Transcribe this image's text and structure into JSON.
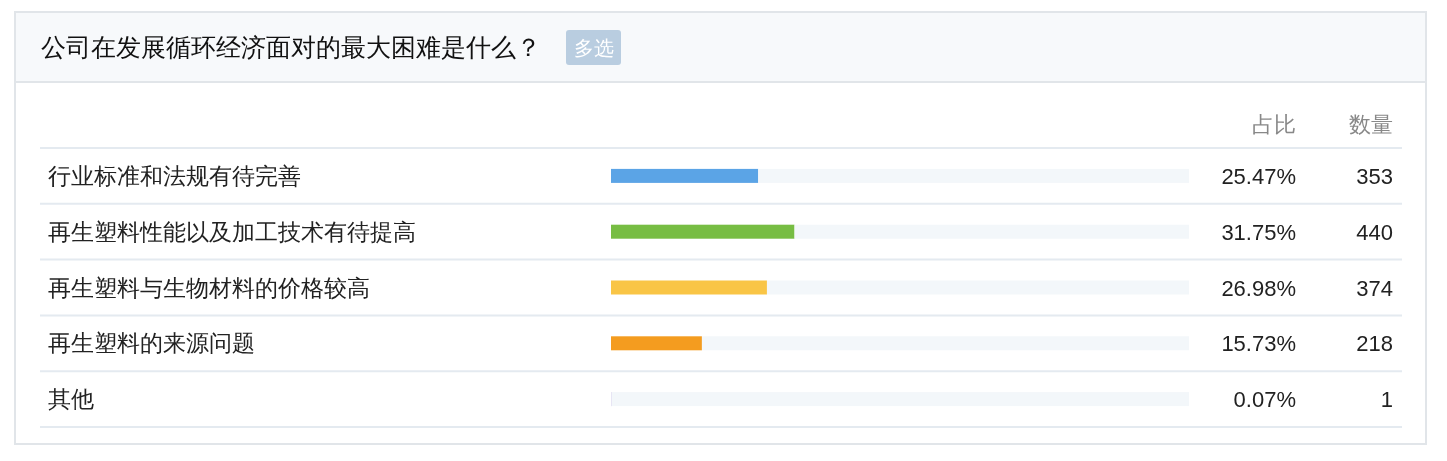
{
  "chart_data": {
    "type": "bar",
    "orientation": "horizontal",
    "stacked": true,
    "title": "公司在发展循环经济面对的最大困难是什么？",
    "subtitle": "多选",
    "xlabel": "占比",
    "categories": [
      "行业标准和法规有待完善",
      "再生塑料性能以及加工技术有待提高",
      "再生塑料与生物材料的价格较高",
      "再生塑料的来源问题",
      "其他"
    ],
    "series": [
      {
        "values": [
          25.47,
          31.75,
          26.98,
          15.73,
          0.07
        ],
        "colors": [
          "#5ba4e6",
          "#77bd43",
          "#f9c546",
          "#f49c1f",
          "#9b7fd1"
        ],
        "value_labels": [
          "25.47%",
          "31.75%",
          "26.98%",
          "15.73%",
          "0.07%"
        ]
      },
      {
        "values": [
          74.53,
          68.25,
          73.02,
          84.27,
          99.93
        ],
        "color": "#f3f7fa"
      }
    ],
    "xlim": [
      0,
      100
    ],
    "tick_labels": "y",
    "annotations": [
      "数量",
      "353",
      "440",
      "374",
      "218",
      "1"
    ]
  }
}
